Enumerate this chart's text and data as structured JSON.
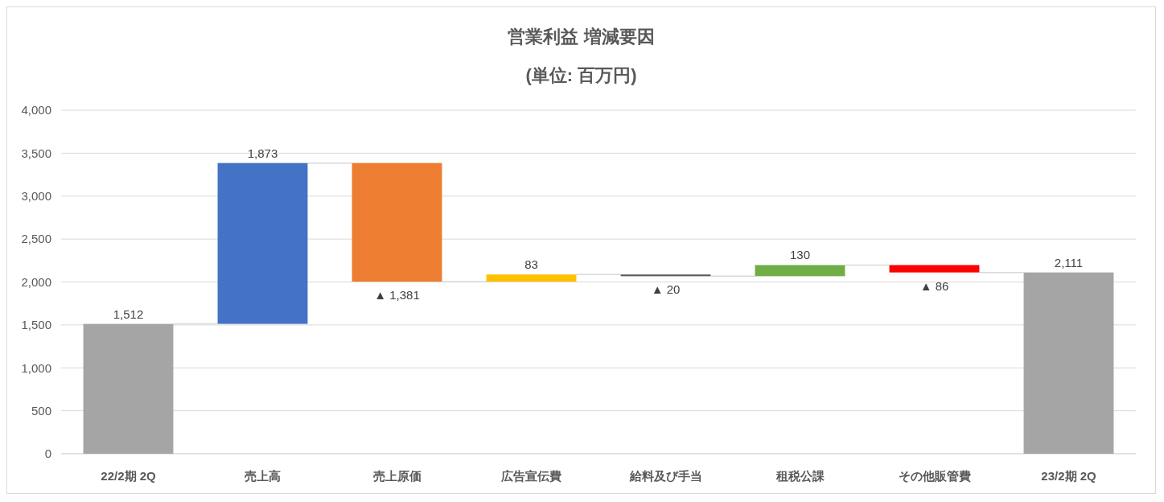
{
  "chart_data": {
    "type": "bar",
    "title": "営業利益 増減要因",
    "subtitle": "(単位: 百万円)",
    "categories": [
      "22/2期 2Q",
      "売上高",
      "売上原価",
      "広告宣伝費",
      "給料及び手当",
      "租税公課",
      "その他販管費",
      "23/2期 2Q"
    ],
    "values": [
      1512,
      1873,
      -1381,
      83,
      -20,
      130,
      -86,
      2111
    ],
    "base": [
      0,
      1512,
      3385,
      2004,
      2087,
      2067,
      2197,
      0
    ],
    "colors": [
      "#a5a5a5",
      "#4472c4",
      "#ed7d31",
      "#ffc000",
      "#5a5a5a",
      "#70ad47",
      "#ff0000",
      "#a5a5a5"
    ],
    "value_labels": [
      "1,512",
      "1,873",
      "▲ 1,381",
      "83",
      "▲ 20",
      "130",
      "▲ 86",
      "2,111"
    ],
    "ylim": [
      0,
      4000
    ],
    "yticks": [
      0,
      500,
      {
        "value": 1000,
        "label": "1,000"
      },
      {
        "value": 1500,
        "label": "1,500"
      },
      {
        "value": 2000,
        "label": "2,000"
      },
      {
        "value": 2500,
        "label": "2,500"
      },
      {
        "value": 3000,
        "label": "3,000"
      },
      {
        "value": 3500,
        "label": "3,500"
      },
      {
        "value": 4000,
        "label": "4,000"
      }
    ],
    "grid": true
  }
}
